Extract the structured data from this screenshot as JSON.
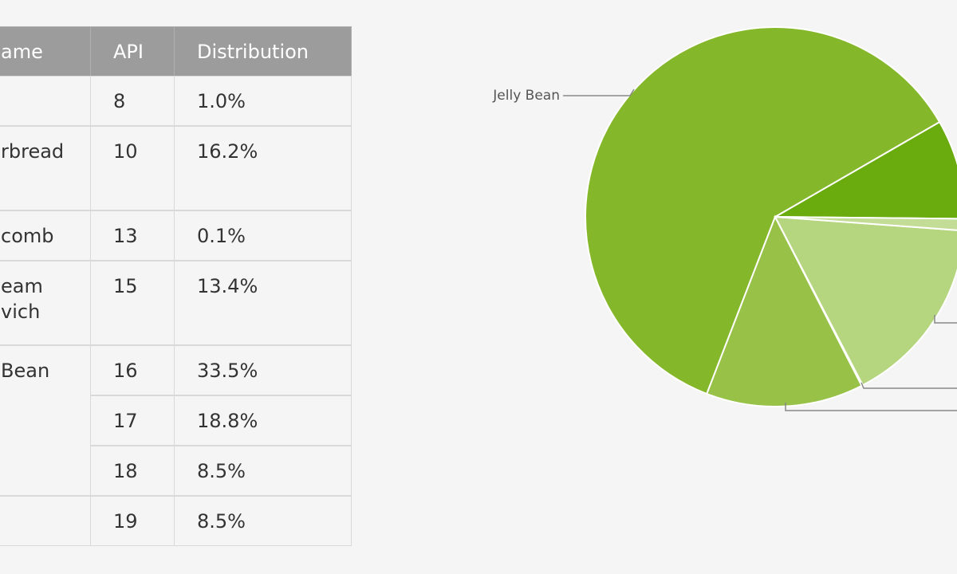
{
  "table": {
    "header": [
      "ame",
      "API",
      "Distribution"
    ],
    "groups": [
      {
        "color": "#c3dd96",
        "versions": [
          {
            "api": "8",
            "distribution": "1.0%"
          }
        ]
      },
      {
        "name_lines": [
          "rbread"
        ],
        "color": "#b5d67f",
        "versions": [
          {
            "api": "10",
            "distribution": "16.2%"
          }
        ]
      },
      {
        "name_lines": [
          "comb"
        ],
        "color": "#b5d67f",
        "versions": [
          {
            "api": "13",
            "distribution": "0.1%"
          }
        ]
      },
      {
        "name_lines": [
          "eam",
          "vich"
        ],
        "color": "#97c147",
        "versions": [
          {
            "api": "15",
            "distribution": "13.4%"
          }
        ]
      },
      {
        "name_lines": [
          "Bean"
        ],
        "color": "#85b72a",
        "versions": [
          {
            "api": "16",
            "distribution": "33.5%"
          },
          {
            "api": "17",
            "distribution": "18.8%"
          },
          {
            "api": "18",
            "distribution": "8.5%"
          }
        ]
      },
      {
        "color": "#6aab0d",
        "versions": [
          {
            "api": "19",
            "distribution": "8.5%"
          }
        ]
      }
    ]
  },
  "pie": {
    "label": "Jelly Bean"
  }
}
